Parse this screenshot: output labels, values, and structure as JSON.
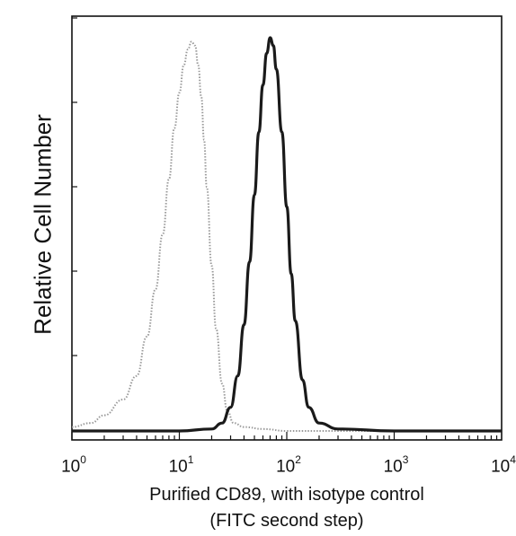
{
  "chart_data": {
    "type": "line",
    "title": "",
    "ylabel": "Relative Cell Number",
    "xlabel": "Purified CD89, with isotype control",
    "xlabel_line2": "(FITC second step)",
    "xscale": "log",
    "xlim": [
      1,
      10000
    ],
    "ylim": [
      0,
      1
    ],
    "grid": false,
    "x_ticks": [
      {
        "base": "10",
        "exp": "0",
        "value": 1
      },
      {
        "base": "10",
        "exp": "1",
        "value": 10
      },
      {
        "base": "10",
        "exp": "2",
        "value": 100
      },
      {
        "base": "10",
        "exp": "3",
        "value": 1000
      },
      {
        "base": "10",
        "exp": "4",
        "value": 10000
      }
    ],
    "series": [
      {
        "color": "#9a9a9a",
        "style": "dotted",
        "x": [
          1.0,
          1.5,
          2.0,
          3.0,
          4.0,
          5.0,
          6.0,
          7.0,
          8.0,
          9.0,
          10.0,
          11.0,
          12.0,
          13.0,
          14.0,
          15.0,
          16.0,
          17.0,
          18.0,
          20.0,
          22.0,
          25.0,
          28.0,
          32.0,
          40.0,
          60.0,
          100.0,
          300.0,
          10000.0
        ],
        "y": [
          0.01,
          0.02,
          0.04,
          0.08,
          0.14,
          0.24,
          0.36,
          0.5,
          0.64,
          0.77,
          0.86,
          0.93,
          0.97,
          0.99,
          0.98,
          0.93,
          0.85,
          0.74,
          0.62,
          0.42,
          0.26,
          0.12,
          0.05,
          0.02,
          0.01,
          0.005,
          0.0,
          0.0,
          0.0
        ]
      },
      {
        "color": "#1a1a1a",
        "style": "solid",
        "x": [
          1.0,
          10.0,
          20.0,
          25.0,
          30.0,
          35.0,
          40.0,
          45.0,
          50.0,
          55.0,
          60.0,
          65.0,
          70.0,
          75.0,
          80.0,
          90.0,
          100.0,
          110.0,
          120.0,
          140.0,
          160.0,
          200.0,
          300.0,
          1000.0,
          10000.0
        ],
        "y": [
          0.0,
          0.0,
          0.005,
          0.02,
          0.06,
          0.14,
          0.27,
          0.43,
          0.6,
          0.76,
          0.88,
          0.96,
          1.0,
          0.98,
          0.92,
          0.76,
          0.57,
          0.4,
          0.28,
          0.13,
          0.06,
          0.02,
          0.005,
          0.0,
          0.0
        ]
      }
    ]
  }
}
